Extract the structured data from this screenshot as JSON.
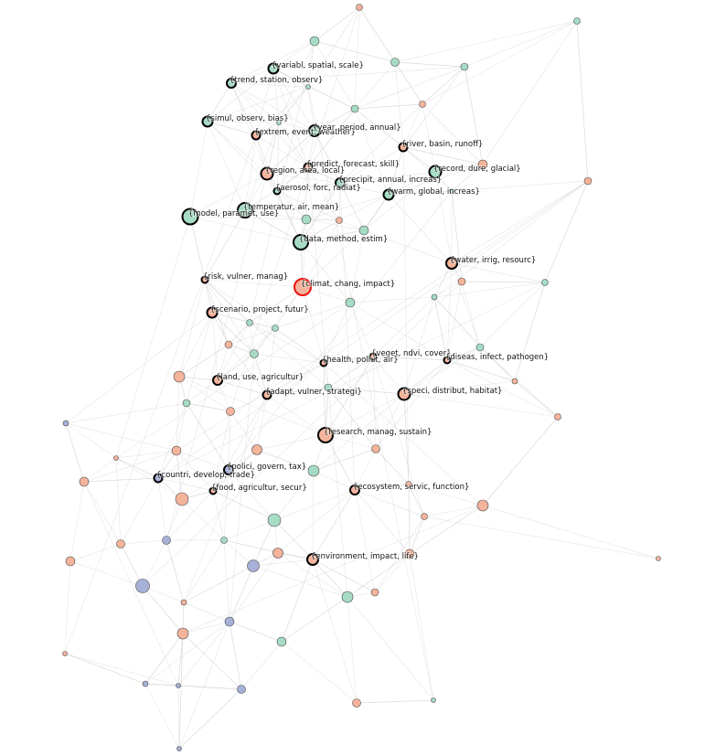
{
  "colors": {
    "green": "#a6dbc4",
    "salmon": "#f4b39b",
    "blue": "#a7b0d6",
    "focus_fill": "#f4b39b",
    "focus_stroke": "#ee1111",
    "edge": "#cfcfcf"
  },
  "labeled_nodes": [
    {
      "id": "climat",
      "label": "{climat, chang, impact}",
      "group": "focus"
    },
    {
      "id": "variabl",
      "label": "{variabl, spatial, scale}",
      "group": "green"
    },
    {
      "id": "trend",
      "label": "{trend, station, observ}",
      "group": "green"
    },
    {
      "id": "simul",
      "label": "{simul, observ, bias}",
      "group": "green"
    },
    {
      "id": "extrem",
      "label": "{extrem, event, weather}",
      "group": "salmon"
    },
    {
      "id": "year",
      "label": "{year, period, annual}",
      "group": "green"
    },
    {
      "id": "river",
      "label": "{river, basin, runoff}",
      "group": "salmon"
    },
    {
      "id": "predict",
      "label": "{predict, forecast, skill}",
      "group": "salmon"
    },
    {
      "id": "record",
      "label": "{record, dure, glacial}",
      "group": "green"
    },
    {
      "id": "region",
      "label": "{region, area, local}",
      "group": "salmon"
    },
    {
      "id": "precipit",
      "label": "{precipit, annual, increas}",
      "group": "green"
    },
    {
      "id": "aerosol",
      "label": "{aerosol, forc, radiat}",
      "group": "green"
    },
    {
      "id": "warm",
      "label": "{warm, global, increas}",
      "group": "green"
    },
    {
      "id": "model",
      "label": "{model, paramet, use}",
      "group": "green"
    },
    {
      "id": "temperatur",
      "label": "{temperatur, air, mean}",
      "group": "green"
    },
    {
      "id": "data",
      "label": "{data, method, estim}",
      "group": "green"
    },
    {
      "id": "water",
      "label": "{water, irrig, resourc}",
      "group": "salmon"
    },
    {
      "id": "risk",
      "label": "{risk, vulner, manag}",
      "group": "salmon"
    },
    {
      "id": "scenario",
      "label": "{scenario, project, futur}",
      "group": "salmon"
    },
    {
      "id": "veget",
      "label": "{veget, ndvi, cover}",
      "group": "salmon"
    },
    {
      "id": "health",
      "label": "{health, pollut, air}",
      "group": "salmon"
    },
    {
      "id": "diseas",
      "label": "{diseas, infect, pathogen}",
      "group": "salmon"
    },
    {
      "id": "land",
      "label": "{land, use, agricultur}",
      "group": "salmon"
    },
    {
      "id": "adapt",
      "label": "{adapt, vulner, strategi}",
      "group": "salmon"
    },
    {
      "id": "speci",
      "label": "{speci, distribut, habitat}",
      "group": "salmon"
    },
    {
      "id": "research",
      "label": "{research, manag, sustain}",
      "group": "salmon"
    },
    {
      "id": "polici",
      "label": "{polici, govern, tax}",
      "group": "blue"
    },
    {
      "id": "countri",
      "label": "{countri, develop, trade}",
      "group": "blue"
    },
    {
      "id": "food",
      "label": "{food, agricultur, secur}",
      "group": "salmon"
    },
    {
      "id": "ecosystem",
      "label": "{ecosystem, servic, function}",
      "group": "salmon"
    },
    {
      "id": "environment",
      "label": "{environment, impact, life}",
      "group": "salmon"
    }
  ]
}
